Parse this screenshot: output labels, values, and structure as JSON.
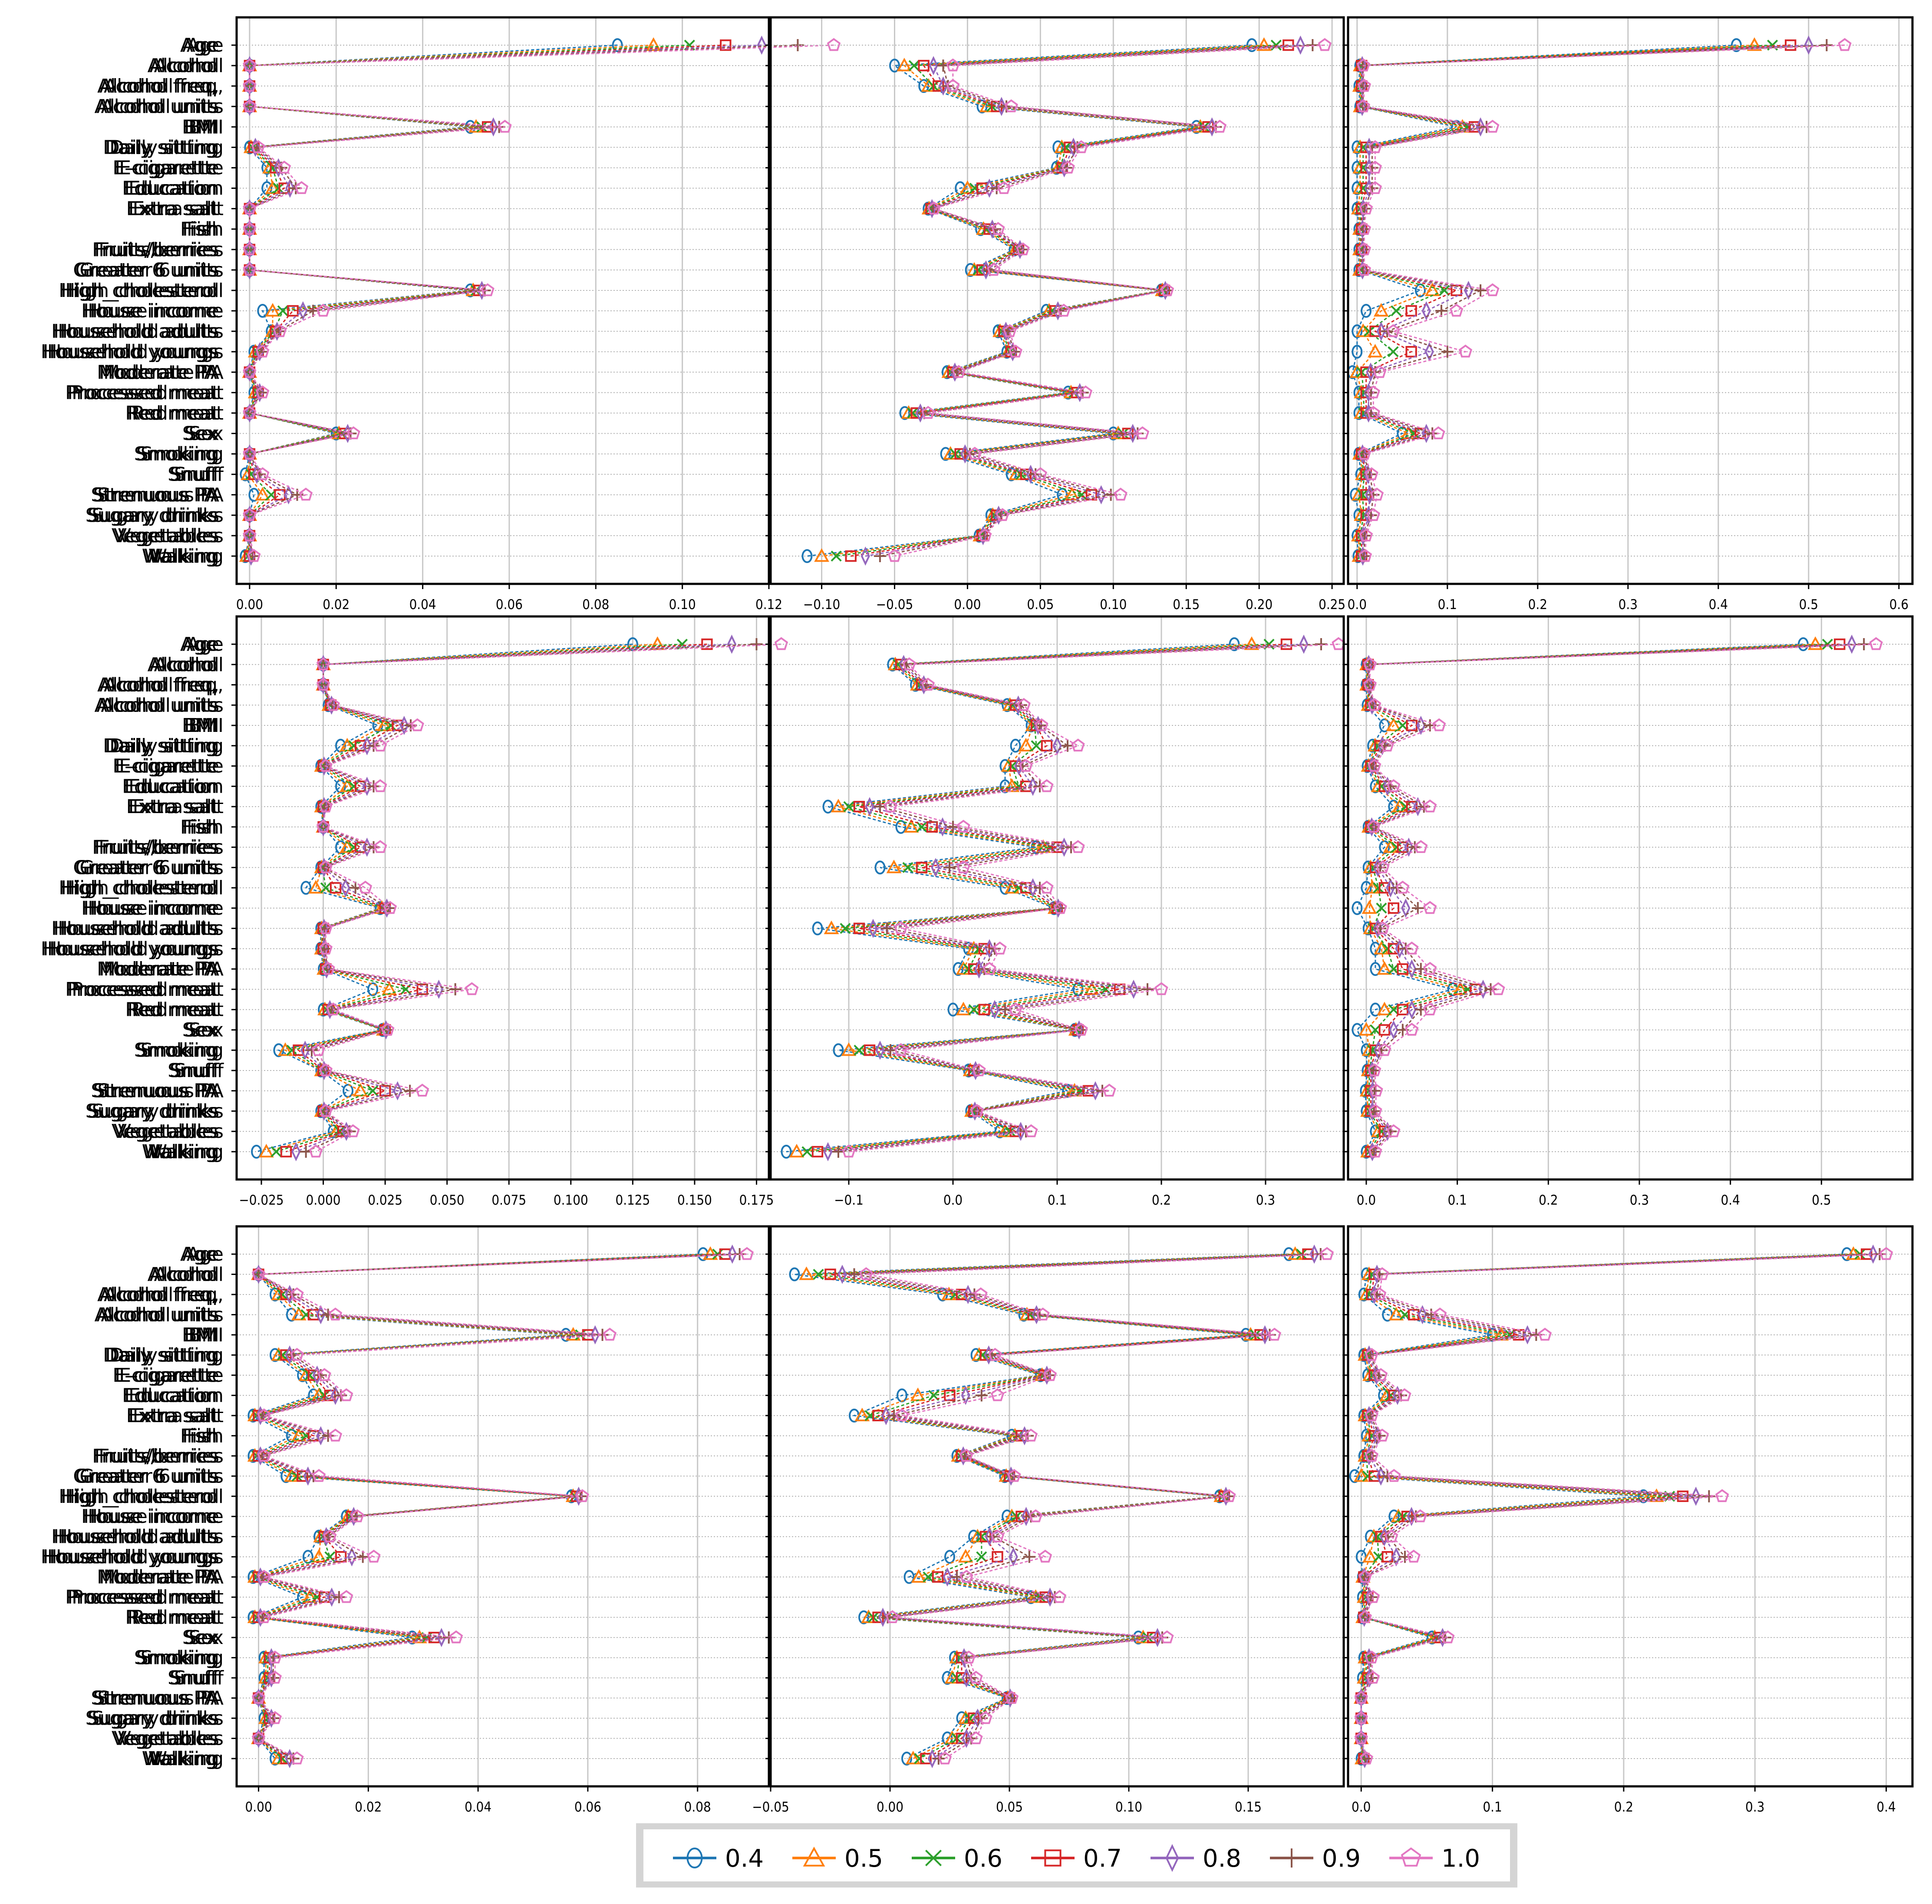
{
  "chart_data": {
    "type": "line",
    "features": [
      "Age",
      "Alcohol",
      "Alcohol freq,",
      "Alcohol units",
      "BMI",
      "Daily sitting",
      "E-cigarette",
      "Education",
      "Extra salt",
      "Fish",
      "Fruits/berries",
      "Greater 6 units",
      "High_cholesterol",
      "House income",
      "Household adults",
      "Household youngs",
      "Moderate PA",
      "Processed meat",
      "Red meat",
      "Sex",
      "Smoking",
      "Snuff",
      "Strenuous PA",
      "Sugary drinks",
      "Vegetables",
      "Walking"
    ],
    "legend": {
      "placement": "bottom-center",
      "entries": [
        {
          "label": "0.4",
          "color": "#1f77b4",
          "marker": "circle"
        },
        {
          "label": "0.5",
          "color": "#ff7f0e",
          "marker": "triangle"
        },
        {
          "label": "0.6",
          "color": "#2ca02c",
          "marker": "x"
        },
        {
          "label": "0.7",
          "color": "#d62728",
          "marker": "square"
        },
        {
          "label": "0.8",
          "color": "#9467bd",
          "marker": "diamond"
        },
        {
          "label": "0.9",
          "color": "#8c564b",
          "marker": "plus"
        },
        {
          "label": "1.0",
          "color": "#e377c2",
          "marker": "pentagon"
        }
      ]
    },
    "grid": "x-major solid, y dotted",
    "panels": [
      {
        "xlim": [
          -0.003,
          0.12
        ],
        "xticks": [
          "0.00",
          "0.02",
          "0.04",
          "0.06",
          "0.08",
          "0.10",
          "0.12"
        ],
        "xtick_values": [
          0,
          0.02,
          0.04,
          0.06,
          0.08,
          0.1,
          0.12
        ],
        "base": [
          0.11,
          0,
          0,
          0,
          0.055,
          0.001,
          0.006,
          0.008,
          0,
          0,
          0,
          0,
          0.053,
          0.01,
          0.006,
          0.002,
          0,
          0.002,
          0,
          0.022,
          0,
          0.001,
          0.007,
          0,
          0,
          0
        ],
        "delta": [
          0.025,
          0,
          0,
          0,
          0.004,
          0.001,
          0.002,
          0.004,
          0,
          0,
          0,
          0,
          0.002,
          0.007,
          0.001,
          0.001,
          0,
          0.001,
          0,
          0.002,
          0,
          0.002,
          0.006,
          0,
          0,
          0.001
        ]
      },
      {
        "xlim": [
          -0.135,
          0.258
        ],
        "xticks": [
          "−0.10",
          "−0.05",
          "0.00",
          "0.05",
          "0.10",
          "0.15",
          "0.20",
          "0.25"
        ],
        "xtick_values": [
          -0.1,
          -0.05,
          0,
          0.05,
          0.1,
          0.15,
          0.2,
          0.25
        ],
        "base": [
          0.22,
          -0.03,
          -0.02,
          0.02,
          0.165,
          0.07,
          0.065,
          0.01,
          -0.025,
          0.015,
          0.035,
          0.01,
          0.135,
          0.06,
          0.025,
          0.03,
          -0.01,
          0.075,
          -0.035,
          0.11,
          -0.005,
          0.04,
          0.085,
          0.02,
          0.01,
          -0.08
        ],
        "delta": [
          0.025,
          0.02,
          0.01,
          0.01,
          0.008,
          0.008,
          0.004,
          0.015,
          0.002,
          0.006,
          0.003,
          0.008,
          0.002,
          0.006,
          0.004,
          0.003,
          0.004,
          0.006,
          0.008,
          0.01,
          0.01,
          0.01,
          0.02,
          0.004,
          0.002,
          0.03
        ]
      },
      {
        "xlim": [
          -0.01,
          0.615
        ],
        "xticks": [
          "0.0",
          "0.1",
          "0.2",
          "0.3",
          "0.4",
          "0.5",
          "0.6"
        ],
        "xtick_values": [
          0,
          0.1,
          0.2,
          0.3,
          0.4,
          0.5,
          0.6
        ],
        "base": [
          0.48,
          0.005,
          0.005,
          0.005,
          0.13,
          0.01,
          0.01,
          0.01,
          0.005,
          0.005,
          0.005,
          0.005,
          0.11,
          0.06,
          0.02,
          0.06,
          0.01,
          0.01,
          0.01,
          0.07,
          0.005,
          0.01,
          0.01,
          0.01,
          0.005,
          0.005
        ],
        "delta": [
          0.06,
          0.002,
          0.003,
          0.002,
          0.02,
          0.01,
          0.01,
          0.01,
          0.005,
          0.003,
          0.003,
          0.003,
          0.04,
          0.05,
          0.02,
          0.06,
          0.015,
          0.008,
          0.008,
          0.02,
          0.003,
          0.006,
          0.012,
          0.008,
          0.005,
          0.004
        ]
      },
      {
        "xlim": [
          -0.035,
          0.18
        ],
        "xticks": [
          "−0.025",
          "0.000",
          "0.025",
          "0.050",
          "0.075",
          "0.100",
          "0.125",
          "0.150",
          "0.175"
        ],
        "xtick_values": [
          -0.025,
          0,
          0.025,
          0.05,
          0.075,
          0.1,
          0.125,
          0.15,
          0.175
        ],
        "base": [
          0.155,
          0,
          0,
          0.003,
          0.03,
          0.015,
          0,
          0.015,
          0,
          0,
          0.015,
          0,
          0.005,
          0.025,
          0,
          0,
          0.001,
          0.04,
          0.002,
          0.025,
          -0.01,
          0,
          0.025,
          0,
          0.008,
          -0.015
        ],
        "delta": [
          0.03,
          0,
          0,
          0.001,
          0.008,
          0.008,
          0.001,
          0.008,
          0.001,
          0,
          0.008,
          0.001,
          0.012,
          0.002,
          0.001,
          0.001,
          0.001,
          0.02,
          0.002,
          0.001,
          0.008,
          0.001,
          0.015,
          0.001,
          0.004,
          0.012
        ]
      },
      {
        "xlim": [
          -0.175,
          0.375
        ],
        "xticks": [
          "−0.1",
          "0.0",
          "0.1",
          "0.2",
          "0.3"
        ],
        "xtick_values": [
          -0.1,
          0,
          0.1,
          0.2,
          0.3
        ],
        "base": [
          0.32,
          -0.05,
          -0.03,
          0.06,
          0.08,
          0.09,
          0.06,
          0.07,
          -0.09,
          -0.02,
          0.1,
          -0.03,
          0.07,
          0.1,
          -0.09,
          0.03,
          0.02,
          0.16,
          0.03,
          0.12,
          -0.08,
          0.02,
          0.13,
          0.02,
          0.06,
          -0.13
        ],
        "delta": [
          0.05,
          0.008,
          0.006,
          0.008,
          0.005,
          0.03,
          0.01,
          0.02,
          0.03,
          0.03,
          0.02,
          0.04,
          0.02,
          0.003,
          0.04,
          0.015,
          0.015,
          0.04,
          0.03,
          0.003,
          0.03,
          0.005,
          0.02,
          0.003,
          0.015,
          0.03
        ]
      },
      {
        "xlim": [
          -0.02,
          0.6
        ],
        "xticks": [
          "0.0",
          "0.1",
          "0.2",
          "0.3",
          "0.4",
          "0.5"
        ],
        "xtick_values": [
          0,
          0.1,
          0.2,
          0.3,
          0.4,
          0.5
        ],
        "base": [
          0.52,
          0.002,
          0.002,
          0.005,
          0.05,
          0.015,
          0.005,
          0.02,
          0.05,
          0.005,
          0.04,
          0.01,
          0.02,
          0.03,
          0.01,
          0.03,
          0.04,
          0.12,
          0.04,
          0.02,
          0.01,
          0.005,
          0.005,
          0.005,
          0.02,
          0.005
        ],
        "delta": [
          0.04,
          0.002,
          0.002,
          0.004,
          0.03,
          0.008,
          0.004,
          0.01,
          0.02,
          0.003,
          0.02,
          0.008,
          0.02,
          0.04,
          0.008,
          0.02,
          0.03,
          0.025,
          0.03,
          0.03,
          0.01,
          0.004,
          0.006,
          0.005,
          0.01,
          0.005
        ]
      },
      {
        "xlim": [
          -0.004,
          0.093
        ],
        "xticks": [
          "0.00",
          "0.02",
          "0.04",
          "0.06",
          "0.08"
        ],
        "xtick_values": [
          0,
          0.02,
          0.04,
          0.06,
          0.08
        ],
        "base": [
          0.085,
          0,
          0.005,
          0.01,
          0.06,
          0.005,
          0.01,
          0.013,
          0,
          0.01,
          0,
          0.008,
          0.058,
          0.017,
          0.012,
          0.015,
          0,
          0.012,
          0,
          0.032,
          0.002,
          0.002,
          0,
          0.002,
          0,
          0.005
        ],
        "delta": [
          0.004,
          0,
          0.002,
          0.004,
          0.004,
          0.002,
          0.002,
          0.003,
          0.001,
          0.004,
          0.001,
          0.003,
          0.001,
          0.001,
          0.001,
          0.006,
          0.001,
          0.004,
          0.001,
          0.004,
          0.001,
          0.001,
          0,
          0.001,
          0,
          0.002
        ]
      },
      {
        "xlim": [
          -0.05,
          0.19
        ],
        "xticks": [
          "−0.05",
          "0.00",
          "0.05",
          "0.10",
          "0.15"
        ],
        "xtick_values": [
          -0.05,
          0,
          0.05,
          0.1,
          0.15
        ],
        "base": [
          0.175,
          -0.025,
          0.03,
          0.06,
          0.155,
          0.04,
          0.065,
          0.025,
          -0.005,
          0.055,
          0.03,
          0.05,
          0.14,
          0.055,
          0.04,
          0.045,
          0.02,
          0.065,
          -0.005,
          0.11,
          0.03,
          0.03,
          0.05,
          0.035,
          0.03,
          0.015
        ],
        "delta": [
          0.008,
          0.015,
          0.008,
          0.004,
          0.006,
          0.004,
          0.002,
          0.02,
          0.01,
          0.004,
          0.002,
          0.002,
          0.002,
          0.006,
          0.005,
          0.02,
          0.012,
          0.006,
          0.006,
          0.006,
          0.003,
          0.006,
          0.001,
          0.005,
          0.006,
          0.008
        ]
      },
      {
        "xlim": [
          -0.01,
          0.42
        ],
        "xticks": [
          "0.0",
          "0.1",
          "0.2",
          "0.3",
          "0.4"
        ],
        "xtick_values": [
          0,
          0.1,
          0.2,
          0.3,
          0.4
        ],
        "base": [
          0.385,
          0.01,
          0.008,
          0.04,
          0.12,
          0.005,
          0.01,
          0.025,
          0.005,
          0.01,
          0.005,
          0.01,
          0.245,
          0.035,
          0.015,
          0.02,
          0.002,
          0.005,
          0.002,
          0.06,
          0.005,
          0.005,
          0,
          0,
          0,
          0.002
        ],
        "delta": [
          0.015,
          0.006,
          0.006,
          0.02,
          0.02,
          0.003,
          0.005,
          0.008,
          0.003,
          0.006,
          0.003,
          0.015,
          0.03,
          0.01,
          0.008,
          0.02,
          0.001,
          0.004,
          0.001,
          0.006,
          0.003,
          0.004,
          0,
          0,
          0,
          0.002
        ]
      }
    ]
  }
}
